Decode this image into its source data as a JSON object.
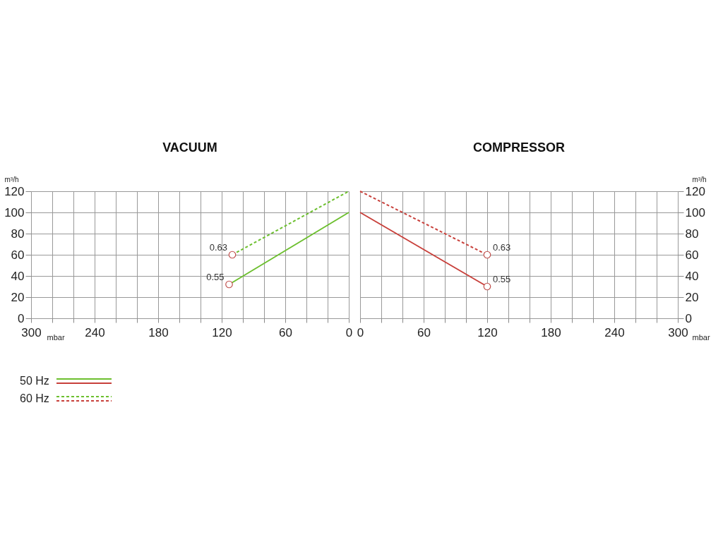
{
  "chart_data": [
    {
      "type": "line",
      "title": "VACUUM",
      "xlabel": "mbar",
      "ylabel": "m³/h",
      "xlim": [
        300,
        0
      ],
      "xticks": [
        300,
        {
          "value": 280,
          "label": null
        },
        {
          "value": 260,
          "label": null
        },
        240,
        {
          "value": 220,
          "label": null
        },
        {
          "value": 200,
          "label": null
        },
        180,
        {
          "value": 160,
          "label": null
        },
        {
          "value": 140,
          "label": null
        },
        120,
        {
          "value": 100,
          "label": null
        },
        {
          "value": 80,
          "label": null
        },
        60,
        {
          "value": 40,
          "label": null
        },
        {
          "value": 20,
          "label": null
        },
        0
      ],
      "ylim": [
        0,
        120
      ],
      "yticks": [
        0,
        20,
        40,
        60,
        80,
        100,
        120
      ],
      "grid": true,
      "legend": "bottom left",
      "series": [
        {
          "name": "50 Hz",
          "color": "#6cbf2e",
          "x": [
            0,
            113
          ],
          "values": [
            100,
            32
          ],
          "line_style": "solid"
        },
        {
          "name": "60 Hz",
          "color": "#6cbf2e",
          "x": [
            0,
            110
          ],
          "values": [
            120,
            60
          ],
          "line_style": "dashed"
        },
        {
          "type": "scatter",
          "color": "#c0504d",
          "marker": "circle",
          "x": [
            113,
            110
          ],
          "values": [
            32,
            60
          ]
        }
      ],
      "annotations": [
        {
          "text": "0.55",
          "x": 113,
          "y": 32
        },
        {
          "text": "0.63",
          "x": 110,
          "y": 60
        }
      ]
    },
    {
      "type": "line",
      "title": "COMPRESSOR",
      "xlabel": "mbar",
      "ylabel": "m³/h",
      "xlim": [
        0,
        300
      ],
      "xticks": [
        0,
        {
          "value": 20,
          "label": null
        },
        {
          "value": 40,
          "label": null
        },
        60,
        {
          "value": 80,
          "label": null
        },
        {
          "value": 100,
          "label": null
        },
        120,
        {
          "value": 140,
          "label": null
        },
        {
          "value": 160,
          "label": null
        },
        180,
        {
          "value": 200,
          "label": null
        },
        {
          "value": 220,
          "label": null
        },
        240,
        {
          "value": 260,
          "label": null
        },
        {
          "value": 280,
          "label": null
        },
        300
      ],
      "ylim": [
        0,
        120
      ],
      "yticks": [
        0,
        20,
        40,
        60,
        80,
        100,
        120
      ],
      "grid": true,
      "series": [
        {
          "color": "#c8403b",
          "x": [
            0,
            120
          ],
          "values": [
            100,
            30
          ],
          "line_style": "solid"
        },
        {
          "color": "#c8403b",
          "x": [
            0,
            120
          ],
          "values": [
            120,
            60
          ],
          "line_style": "dashed"
        },
        {
          "type": "scatter",
          "color": "#c0504d",
          "marker": "circle",
          "x": [
            120,
            120
          ],
          "values": [
            30,
            60
          ]
        }
      ],
      "annotations": [
        {
          "text": "0.55",
          "x": 120,
          "y": 30
        },
        {
          "text": "0.63",
          "x": 120,
          "y": 60
        }
      ]
    }
  ]
}
